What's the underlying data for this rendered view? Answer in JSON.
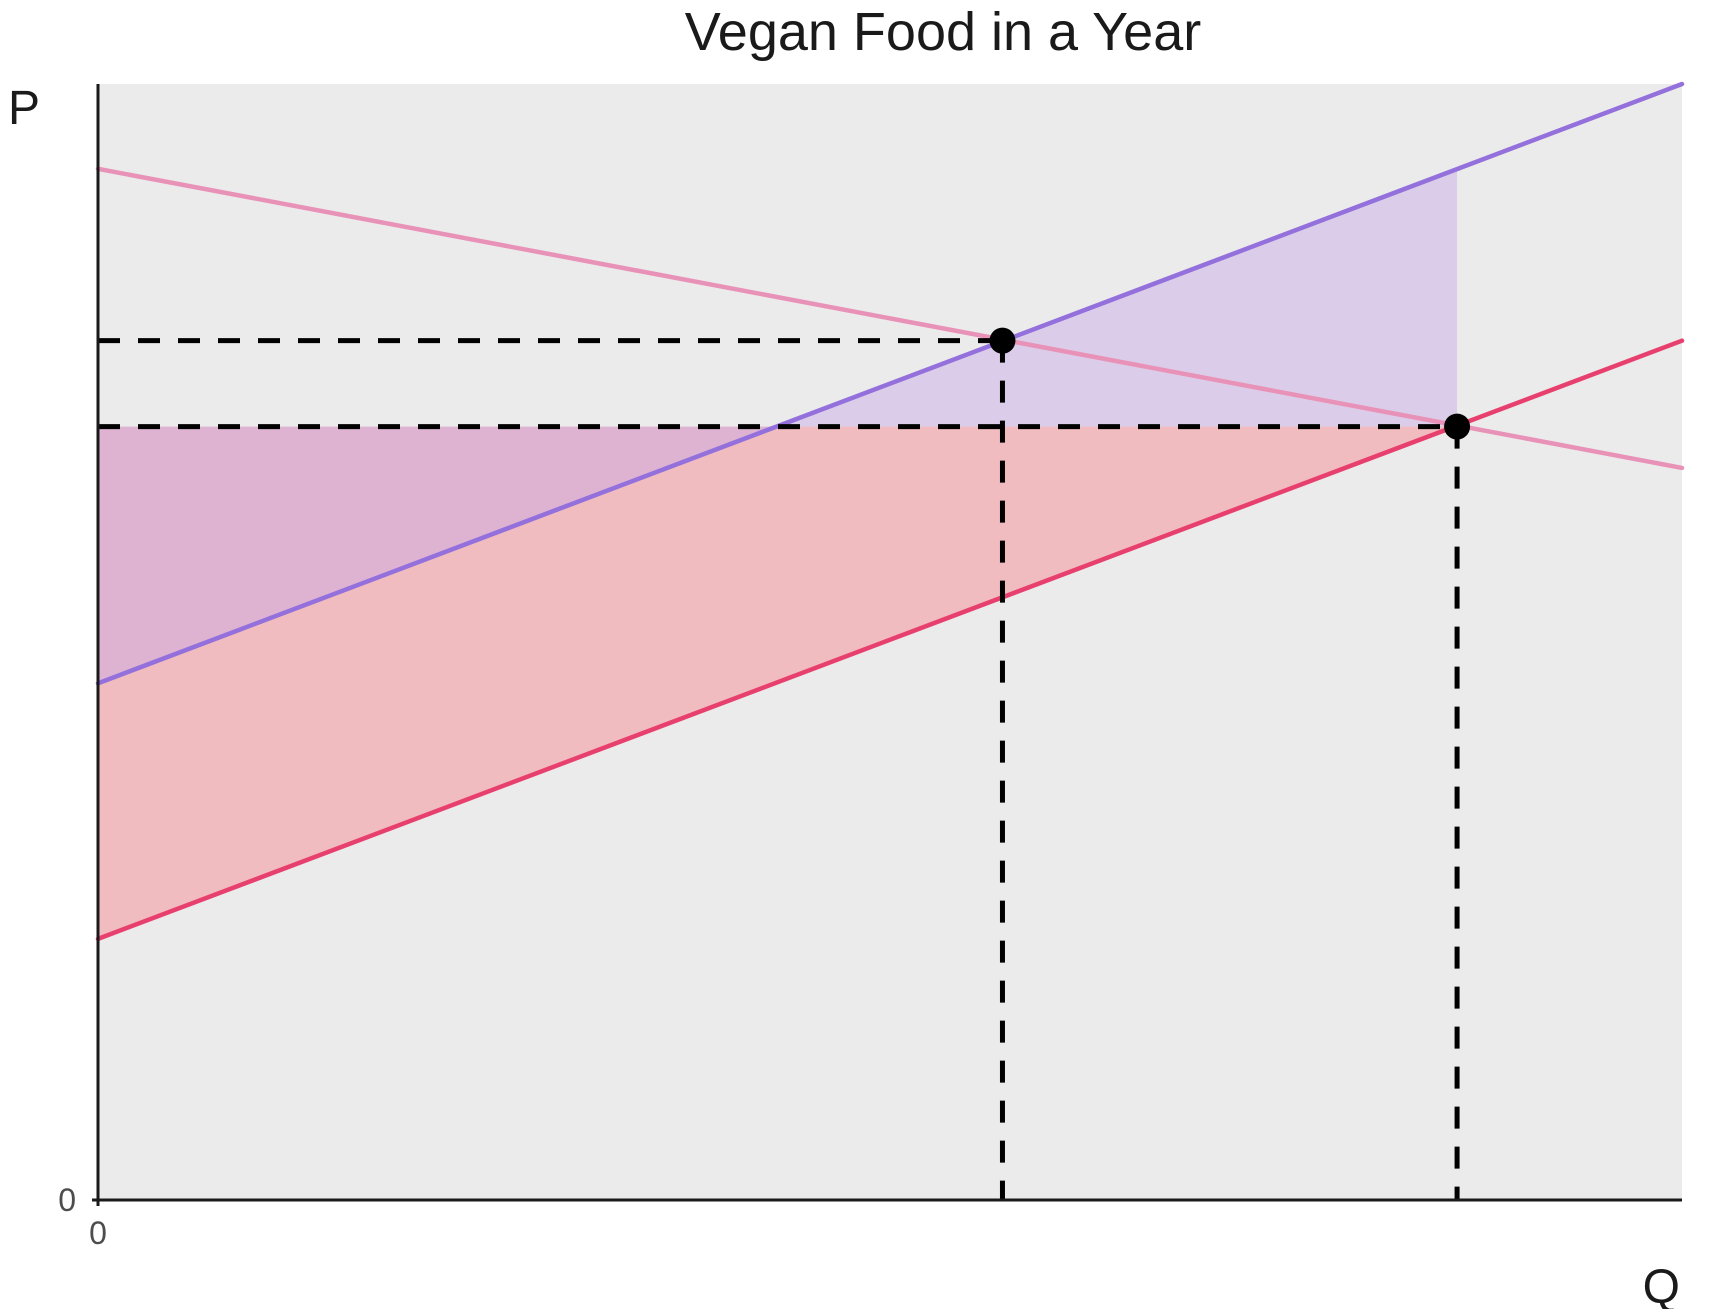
{
  "chart_data": {
    "type": "line",
    "title": "Vegan Food in a Year",
    "xlabel": "Q",
    "ylabel": "P",
    "xlim": [
      0,
      100
    ],
    "ylim": [
      0,
      100
    ],
    "x_ticks": [
      "0"
    ],
    "y_ticks": [
      "0"
    ],
    "grid": false,
    "background": "#ebebeb",
    "series": [
      {
        "color": "#e992b8",
        "points": [
          [
            0,
            92.4
          ],
          [
            100,
            65.6
          ]
        ]
      },
      {
        "color": "#9370db",
        "points": [
          [
            0,
            46.3
          ],
          [
            100,
            100
          ]
        ]
      },
      {
        "color": "#e8406e",
        "points": [
          [
            0,
            23.4
          ],
          [
            100,
            77.0
          ]
        ]
      }
    ],
    "equilibria": [
      {
        "x": 57.1,
        "y": 77.0
      },
      {
        "x": 85.8,
        "y": 69.3
      }
    ],
    "shaded_regions": [
      {
        "color": "#c8a8e9",
        "opacity": 0.45,
        "polygon": [
          [
            43.0,
            69.3
          ],
          [
            85.8,
            69.3
          ],
          [
            85.8,
            92.4
          ]
        ]
      },
      {
        "color": "#f4a3a8",
        "opacity": 0.65,
        "polygon": [
          [
            0,
            23.4
          ],
          [
            0,
            69.3
          ],
          [
            85.8,
            69.3
          ]
        ]
      },
      {
        "color": "#c8a8e9",
        "opacity": 0.45,
        "polygon": [
          [
            0,
            46.3
          ],
          [
            0,
            69.3
          ],
          [
            43.0,
            69.3
          ]
        ]
      }
    ],
    "guide_lines": [
      {
        "style": "dashed",
        "from": [
          0,
          77.0
        ],
        "to": [
          57.1,
          77.0
        ]
      },
      {
        "style": "dashed",
        "from": [
          57.1,
          77.0
        ],
        "to": [
          57.1,
          0
        ]
      },
      {
        "style": "dashed",
        "from": [
          0,
          69.3
        ],
        "to": [
          85.8,
          69.3
        ]
      },
      {
        "style": "dashed",
        "from": [
          85.8,
          69.3
        ],
        "to": [
          85.8,
          0
        ]
      }
    ]
  }
}
